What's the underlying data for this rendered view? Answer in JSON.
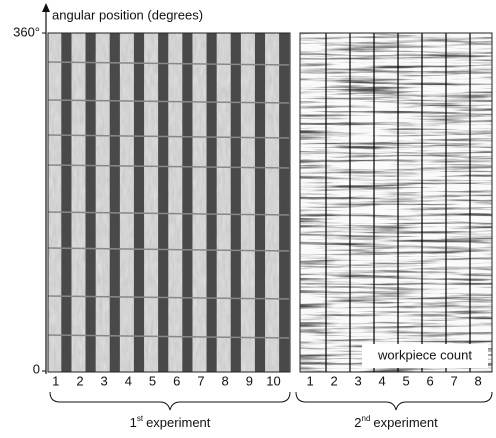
{
  "figure": {
    "y_axis": {
      "label": "angular position (degrees)",
      "top": "360°",
      "bottom": "0"
    },
    "panels": [
      {
        "columns": [
          "1",
          "2",
          "3",
          "4",
          "5",
          "6",
          "7",
          "8",
          "9",
          "10"
        ],
        "caption_number": "1",
        "caption_suffix": "st",
        "caption_text": "experiment"
      },
      {
        "columns": [
          "1",
          "2",
          "3",
          "4",
          "5",
          "6",
          "7",
          "8"
        ],
        "caption_number": "2",
        "caption_suffix": "nd",
        "caption_text": "experiment",
        "annotation": "workpiece count"
      }
    ]
  }
}
